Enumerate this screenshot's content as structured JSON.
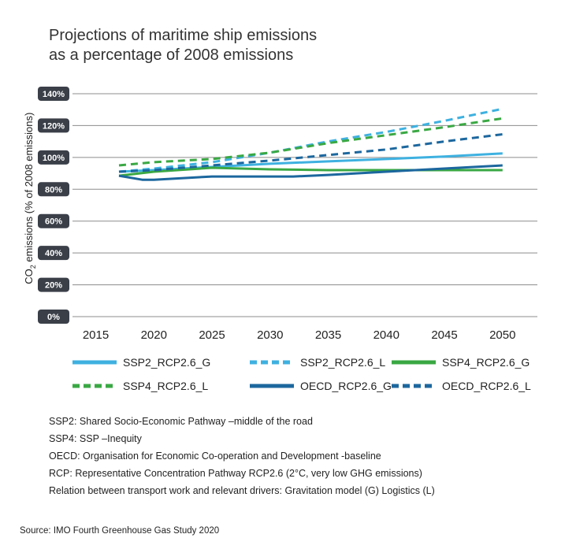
{
  "title_line1": "Projections of maritime ship emissions",
  "title_line2": "as a percentage of 2008 emissions",
  "ylabel_main": "CO",
  "ylabel_sub": "2",
  "ylabel_rest": " emissions (% of 2008 emissions)",
  "notes": [
    "SSP2: Shared Socio-Economic Pathway –middle of the road",
    "SSP4: SSP –Inequity",
    "OECD: Organisation for Economic Co-operation and Development -baseline",
    "RCP: Representative Concentration Pathway RCP2.6 (2°C, very low GHG emissions)",
    "Relation between transport work and relevant drivers: Gravitation model (G) Logistics (L)"
  ],
  "source": "Source: IMO Fourth Greenhouse Gas Study 2020",
  "chart_data": {
    "type": "line",
    "title": "Projections of maritime ship emissions as a percentage of 2008 emissions",
    "ylabel": "CO2 emissions (% of 2008 emissions)",
    "xlabel": "",
    "xlim": [
      2013,
      2053
    ],
    "ylim": [
      0,
      140
    ],
    "x_ticks": [
      2015,
      2020,
      2025,
      2030,
      2035,
      2040,
      2045,
      2050
    ],
    "y_ticks": [
      0,
      20,
      40,
      60,
      80,
      100,
      120,
      140
    ],
    "y_tick_labels": [
      "0%",
      "20%",
      "40%",
      "60%",
      "80%",
      "100%",
      "120%",
      "140%"
    ],
    "grid": true,
    "legend_position": "bottom",
    "series": [
      {
        "name": "SSP2_RCP2.6_G",
        "color": "#3eb1e0",
        "dash": false,
        "x": [
          2017,
          2020,
          2025,
          2030,
          2035,
          2040,
          2045,
          2050
        ],
        "values": [
          91,
          92,
          94,
          96,
          97.5,
          99,
          100.5,
          102.5
        ]
      },
      {
        "name": "SSP2_RCP2.6_L",
        "color": "#3eb1e0",
        "dash": true,
        "x": [
          2017,
          2020,
          2025,
          2030,
          2035,
          2040,
          2045,
          2050
        ],
        "values": [
          91,
          93,
          97,
          103,
          110,
          116,
          123,
          130.5
        ]
      },
      {
        "name": "SSP4_RCP2.6_G",
        "color": "#3aa843",
        "dash": false,
        "x": [
          2017,
          2020,
          2025,
          2030,
          2035,
          2040,
          2045,
          2050
        ],
        "values": [
          88.5,
          91,
          93.5,
          92.5,
          92,
          92,
          92,
          92
        ]
      },
      {
        "name": "SSP4_RCP2.6_L",
        "color": "#3aa843",
        "dash": true,
        "x": [
          2017,
          2020,
          2025,
          2030,
          2035,
          2040,
          2045,
          2050
        ],
        "values": [
          95,
          97,
          99,
          103,
          109,
          114,
          119,
          124.5
        ]
      },
      {
        "name": "OECD_RCP2.6_G",
        "color": "#1c679e",
        "dash": false,
        "x": [
          2017,
          2019,
          2020,
          2025,
          2030,
          2032,
          2035,
          2040,
          2045,
          2050
        ],
        "values": [
          88.5,
          86,
          86,
          88,
          88,
          88,
          89,
          91,
          93,
          95
        ]
      },
      {
        "name": "OECD_RCP2.6_L",
        "color": "#1c679e",
        "dash": true,
        "x": [
          2017,
          2020,
          2025,
          2030,
          2035,
          2040,
          2045,
          2050
        ],
        "values": [
          91,
          92,
          95,
          98,
          101.5,
          105,
          110,
          114.5
        ]
      }
    ]
  }
}
